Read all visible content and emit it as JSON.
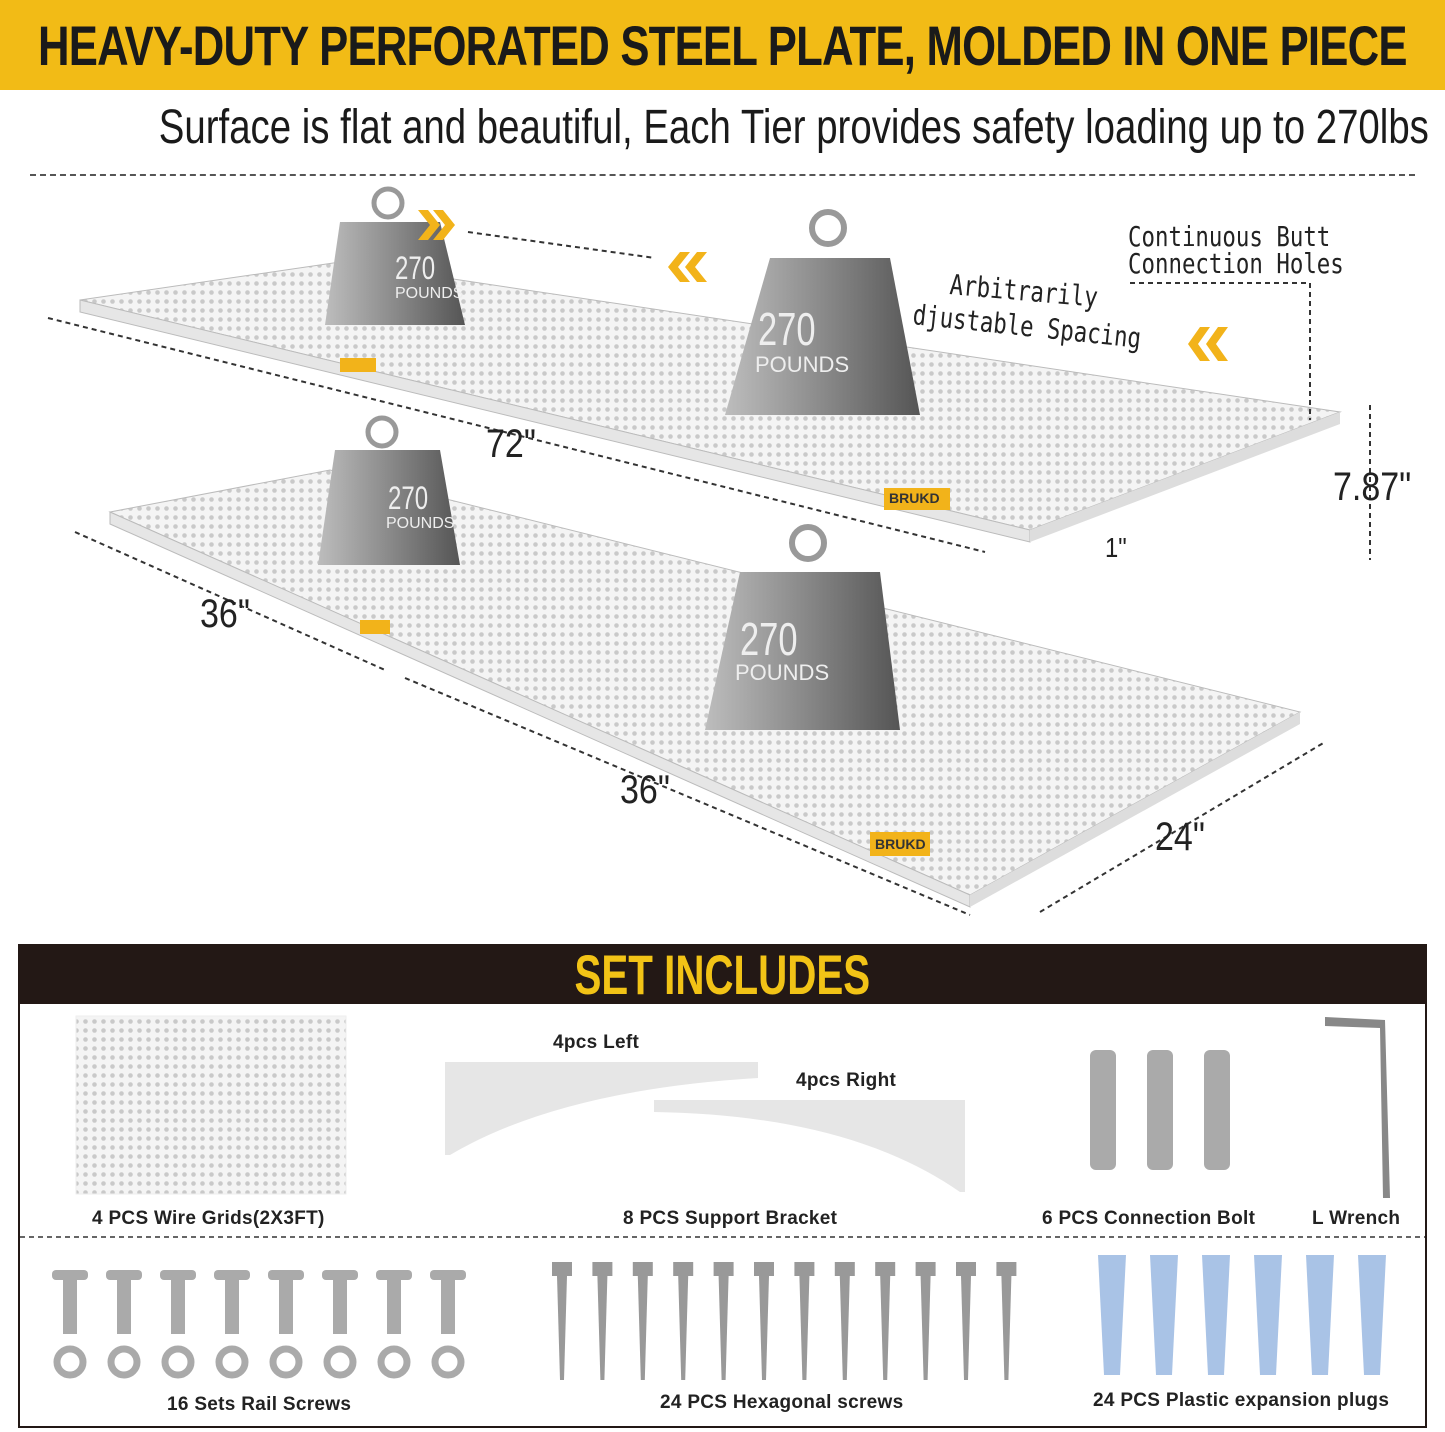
{
  "header": {
    "title": "HEAVY-DUTY PERFORATED STEEL PLATE, MOLDED IN ONE PIECE",
    "subtitle": "Surface is flat and beautiful, Each Tier provides safety loading up to 270lbs"
  },
  "diagram": {
    "annotations": {
      "spacing": "Arbitrarily",
      "spacing2": "djustable Spacing",
      "holes1": "Continuous Butt",
      "holes2": "Connection Holes"
    },
    "dimensions": {
      "top_length": "72\"",
      "height": "7.87\"",
      "thickness": "1\"",
      "seg1": "36\"",
      "seg2": "36\"",
      "depth": "24\""
    },
    "weight": {
      "value": "270",
      "unit": "POUNDS"
    },
    "brand": "BRUKD",
    "colors": {
      "banner": "#f2bb16",
      "dark": "#231815",
      "accent": "#f2c316"
    }
  },
  "set_includes": {
    "title": "SET INCLUDES",
    "bracket_left": "4pcs Left",
    "bracket_right": "4pcs Right",
    "items": [
      "4 PCS Wire Grids(2X3FT)",
      "8 PCS Support Bracket",
      "6 PCS Connection Bolt",
      "L Wrench",
      "16 Sets Rail Screws",
      "24 PCS Hexagonal screws",
      "24 PCS Plastic expansion plugs"
    ]
  }
}
